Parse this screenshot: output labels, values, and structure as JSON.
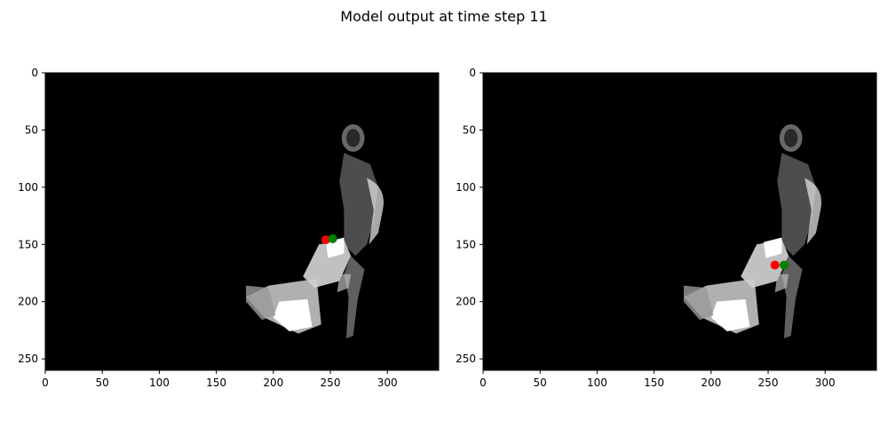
{
  "figure": {
    "title": "Model output at time step 11"
  },
  "chart_data": [
    {
      "type": "scatter",
      "title": "",
      "background": "grayscale silhouette image (black background, white/gray figure)",
      "xlim": [
        0,
        345
      ],
      "ylim": [
        260,
        0
      ],
      "xticks": [
        0,
        50,
        100,
        150,
        200,
        250,
        300
      ],
      "yticks": [
        0,
        50,
        100,
        150,
        200,
        250
      ],
      "grid": false,
      "series": [
        {
          "color": "#ff0000",
          "points": [
            {
              "x": 246,
              "y": 146
            }
          ]
        },
        {
          "color": "#008000",
          "points": [
            {
              "x": 252,
              "y": 145
            }
          ]
        }
      ]
    },
    {
      "type": "scatter",
      "title": "",
      "background": "grayscale silhouette image (black background, white/gray figure)",
      "xlim": [
        0,
        345
      ],
      "ylim": [
        260,
        0
      ],
      "xticks": [
        0,
        50,
        100,
        150,
        200,
        250,
        300
      ],
      "yticks": [
        0,
        50,
        100,
        150,
        200,
        250
      ],
      "grid": false,
      "series": [
        {
          "color": "#ff0000",
          "points": [
            {
              "x": 256,
              "y": 168
            }
          ]
        },
        {
          "color": "#008000",
          "points": [
            {
              "x": 264,
              "y": 168
            }
          ]
        }
      ]
    }
  ]
}
